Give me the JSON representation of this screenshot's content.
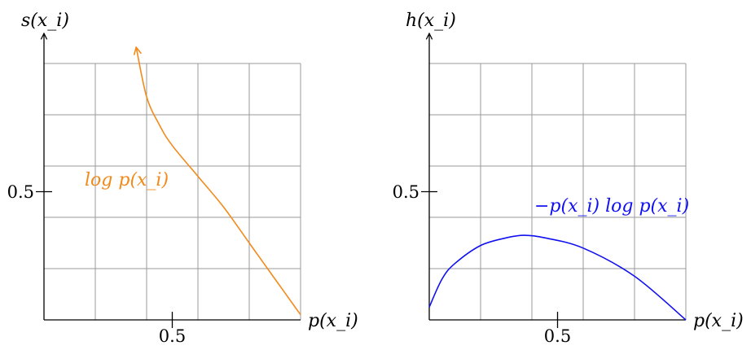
{
  "chart_data": [
    {
      "type": "line",
      "ylabel": "s(x_i)",
      "xlabel": "p(x_i)",
      "xlim": [
        0,
        1
      ],
      "ylim": [
        0,
        1
      ],
      "xticks": [
        {
          "value": 0.5,
          "label": "0.5"
        }
      ],
      "yticks": [
        {
          "value": 0.5,
          "label": "0.5"
        }
      ],
      "grid": true,
      "series": [
        {
          "name": "log p(x_i)",
          "color": "#f28a1b",
          "end_arrow": true,
          "x": [
            1.0,
            0.9,
            0.8,
            0.7,
            0.6,
            0.5,
            0.45,
            0.4,
            0.36
          ],
          "y": [
            0.02,
            0.16,
            0.3,
            0.44,
            0.56,
            0.68,
            0.76,
            0.87,
            1.06
          ]
        }
      ]
    },
    {
      "type": "line",
      "ylabel": "h(x_i)",
      "xlabel": "p(x_i)",
      "xlim": [
        0,
        1
      ],
      "ylim": [
        0,
        1
      ],
      "xticks": [
        {
          "value": 0.5,
          "label": "0.5"
        }
      ],
      "yticks": [
        {
          "value": 0.5,
          "label": "0.5"
        }
      ],
      "grid": true,
      "series": [
        {
          "name": "−p(x_i) log p(x_i)",
          "color": "#1010f0",
          "x": [
            0.0,
            0.05,
            0.1,
            0.2,
            0.3,
            0.37,
            0.45,
            0.6,
            0.8,
            1.0
          ],
          "y": [
            0.05,
            0.16,
            0.22,
            0.29,
            0.32,
            0.33,
            0.32,
            0.28,
            0.17,
            0.0
          ]
        }
      ]
    }
  ]
}
